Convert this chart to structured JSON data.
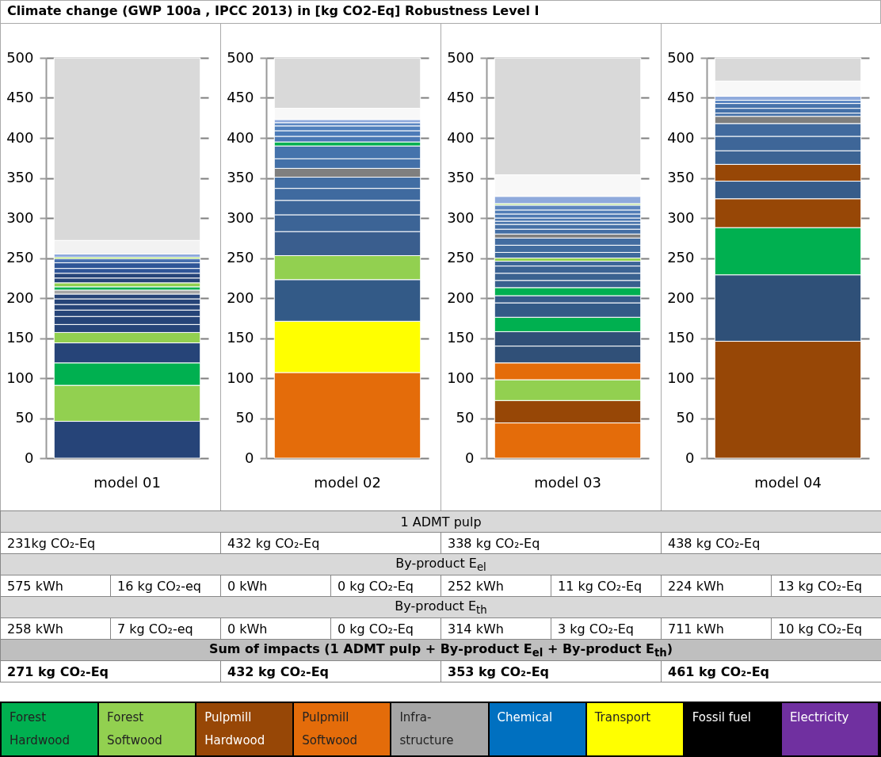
{
  "chart_data": [
    {
      "type": "bar",
      "title": "Climate change (GWP 100a , IPCC 2013) in [kg CO2-Eq] Robustness Level I",
      "categories": [
        "model 01"
      ],
      "stacked": true,
      "ylim": [
        0,
        500
      ],
      "yticks": [
        0,
        50,
        100,
        150,
        200,
        250,
        300,
        350,
        400,
        450,
        500
      ],
      "grid": "y",
      "series": [
        {
          "color": "#264478",
          "values": [
            46
          ]
        },
        {
          "color": "#92d050",
          "values": [
            45
          ]
        },
        {
          "color": "#00b050",
          "values": [
            28
          ]
        },
        {
          "color": "#264478",
          "values": [
            25
          ]
        },
        {
          "color": "#92d050",
          "values": [
            13
          ]
        },
        {
          "color": "#264478",
          "values": [
            10
          ]
        },
        {
          "color": "#264478",
          "values": [
            10
          ]
        },
        {
          "color": "#264478",
          "values": [
            8
          ]
        },
        {
          "color": "#264478",
          "values": [
            7
          ]
        },
        {
          "color": "#264478",
          "values": [
            7
          ]
        },
        {
          "color": "#264478",
          "values": [
            6
          ]
        },
        {
          "color": "#a6a6a6",
          "values": [
            5
          ]
        },
        {
          "color": "#00b050",
          "values": [
            4
          ]
        },
        {
          "color": "#92d050",
          "values": [
            5
          ]
        },
        {
          "color": "#264478",
          "values": [
            6
          ]
        },
        {
          "color": "#264478",
          "values": [
            6
          ]
        },
        {
          "color": "#2f5597",
          "values": [
            6
          ]
        },
        {
          "color": "#2f5597",
          "values": [
            7
          ]
        },
        {
          "color": "#4a72b0",
          "values": [
            5
          ]
        },
        {
          "color": "#92d050",
          "values": [
            2
          ]
        },
        {
          "color": "#8faadc",
          "values": [
            4
          ]
        },
        {
          "color": "#f2f2f2",
          "values": [
            17
          ]
        },
        {
          "color": "#d9d9d9",
          "values": [
            228
          ]
        }
      ],
      "annotations": [
        "231kg CO₂-Eq",
        "575 kWh",
        "16 kg CO₂-eq",
        "258 kWh",
        "7 kg CO₂-eq",
        "271  kg CO₂-Eq"
      ]
    },
    {
      "type": "bar",
      "categories": [
        "model 02"
      ],
      "stacked": true,
      "ylim": [
        0,
        500
      ],
      "yticks": [
        0,
        50,
        100,
        150,
        200,
        250,
        300,
        350,
        400,
        450,
        500
      ],
      "grid": "y",
      "series": [
        {
          "color": "#e46c0a",
          "values": [
            107
          ]
        },
        {
          "color": "#ffff00",
          "values": [
            64
          ]
        },
        {
          "color": "#335a87",
          "values": [
            52
          ]
        },
        {
          "color": "#92d050",
          "values": [
            30
          ]
        },
        {
          "color": "#3a5e8e",
          "values": [
            30
          ]
        },
        {
          "color": "#3c6496",
          "values": [
            21
          ]
        },
        {
          "color": "#3d6699",
          "values": [
            18
          ]
        },
        {
          "color": "#3f6a9f",
          "values": [
            15
          ]
        },
        {
          "color": "#416da3",
          "values": [
            14
          ]
        },
        {
          "color": "#7f7f7f",
          "values": [
            11
          ]
        },
        {
          "color": "#4370a8",
          "values": [
            12
          ]
        },
        {
          "color": "#4573ac",
          "values": [
            16
          ]
        },
        {
          "color": "#00b050",
          "values": [
            5
          ]
        },
        {
          "color": "#4a78b4",
          "values": [
            7
          ]
        },
        {
          "color": "#4c7bb8",
          "values": [
            7
          ]
        },
        {
          "color": "#4f7fbc",
          "values": [
            6
          ]
        },
        {
          "color": "#5b87c2",
          "values": [
            4
          ]
        },
        {
          "color": "#8faadc",
          "values": [
            4
          ]
        },
        {
          "color": "#f8f8f8",
          "values": [
            14
          ]
        },
        {
          "color": "#d9d9d9",
          "values": [
            63
          ]
        }
      ],
      "annotations": [
        "432 kg CO₂-Eq",
        "0 kWh",
        "0 kg CO₂-Eq",
        "0 kWh",
        "0 kg CO₂-Eq",
        "432 kg CO₂-Eq"
      ]
    },
    {
      "type": "bar",
      "categories": [
        "model 03"
      ],
      "stacked": true,
      "ylim": [
        0,
        500
      ],
      "yticks": [
        0,
        50,
        100,
        150,
        200,
        250,
        300,
        350,
        400,
        450,
        500
      ],
      "grid": "y",
      "series": [
        {
          "color": "#e46c0a",
          "values": [
            44
          ]
        },
        {
          "color": "#974706",
          "values": [
            28
          ]
        },
        {
          "color": "#92d050",
          "values": [
            26
          ]
        },
        {
          "color": "#e46c0a",
          "values": [
            21
          ]
        },
        {
          "color": "#305078",
          "values": [
            21
          ]
        },
        {
          "color": "#305078",
          "values": [
            18
          ]
        },
        {
          "color": "#00b050",
          "values": [
            18
          ]
        },
        {
          "color": "#335a87",
          "values": [
            18
          ]
        },
        {
          "color": "#365c8a",
          "values": [
            9
          ]
        },
        {
          "color": "#00b050",
          "values": [
            10
          ]
        },
        {
          "color": "#38608e",
          "values": [
            9
          ]
        },
        {
          "color": "#3a6290",
          "values": [
            9
          ]
        },
        {
          "color": "#3c6494",
          "values": [
            9
          ]
        },
        {
          "color": "#3e6698",
          "values": [
            6
          ]
        },
        {
          "color": "#92d050",
          "values": [
            4
          ]
        },
        {
          "color": "#3f699c",
          "values": [
            7
          ]
        },
        {
          "color": "#416b9e",
          "values": [
            9
          ]
        },
        {
          "color": "#426ca0",
          "values": [
            9
          ]
        },
        {
          "color": "#7f7f7f",
          "values": [
            5
          ]
        },
        {
          "color": "#436ea4",
          "values": [
            6
          ]
        },
        {
          "color": "#4570a6",
          "values": [
            6
          ]
        },
        {
          "color": "#4773ab",
          "values": [
            4
          ]
        },
        {
          "color": "#4a76ae",
          "values": [
            4
          ]
        },
        {
          "color": "#4d79b2",
          "values": [
            5
          ]
        },
        {
          "color": "#517db6",
          "values": [
            5
          ]
        },
        {
          "color": "#5d86bf",
          "values": [
            6
          ]
        },
        {
          "color": "#92d050",
          "values": [
            2
          ]
        },
        {
          "color": "#8faadc",
          "values": [
            9
          ]
        },
        {
          "color": "#f8f8f8",
          "values": [
            27
          ]
        },
        {
          "color": "#d9d9d9",
          "values": [
            146
          ]
        }
      ],
      "annotations": [
        "338 kg CO₂-Eq",
        "252 kWh",
        "11 kg CO₂-Eq",
        "314 kWh",
        "3 kg CO₂-Eq",
        "353 kg CO₂-Eq"
      ]
    },
    {
      "type": "bar",
      "categories": [
        "model 04"
      ],
      "stacked": true,
      "ylim": [
        0,
        500
      ],
      "yticks": [
        0,
        50,
        100,
        150,
        200,
        250,
        300,
        350,
        400,
        450,
        500
      ],
      "grid": "y",
      "series": [
        {
          "color": "#974706",
          "values": [
            146
          ]
        },
        {
          "color": "#2f5078",
          "values": [
            83
          ]
        },
        {
          "color": "#00b050",
          "values": [
            59
          ]
        },
        {
          "color": "#974706",
          "values": [
            36
          ]
        },
        {
          "color": "#365c8a",
          "values": [
            22
          ]
        },
        {
          "color": "#974706",
          "values": [
            21
          ]
        },
        {
          "color": "#3c6494",
          "values": [
            17
          ]
        },
        {
          "color": "#3e6698",
          "values": [
            18
          ]
        },
        {
          "color": "#416a9e",
          "values": [
            16
          ]
        },
        {
          "color": "#7f7f7f",
          "values": [
            9
          ]
        },
        {
          "color": "#4470a8",
          "values": [
            4
          ]
        },
        {
          "color": "#4470a8",
          "values": [
            6
          ]
        },
        {
          "color": "#4773ab",
          "values": [
            6
          ]
        },
        {
          "color": "#5b87c2",
          "values": [
            4
          ]
        },
        {
          "color": "#8faadc",
          "values": [
            5
          ]
        },
        {
          "color": "#f8f8f8",
          "values": [
            19
          ]
        },
        {
          "color": "#d9d9d9",
          "values": [
            29
          ]
        }
      ],
      "annotations": [
        "438 kg CO₂-Eq",
        "224 kWh",
        "13 kg CO₂-Eq",
        "711 kWh",
        "10 kg CO₂-Eq",
        "461 kg CO₂-Eq"
      ]
    },
    {
      "type": "other",
      "categories": [
        "Forest\nHardwood",
        "Forest\nSoftwood",
        "Pulpmill\nHardwood",
        "Pulpmill\nSoftwood",
        "Infra-\nstructure",
        "Chemical",
        "Transport",
        "Fossil fuel",
        "Electricity"
      ],
      "colors": [
        "#00b050",
        "#92d050",
        "#974706",
        "#e46c0a",
        "#a6a6a6",
        "#0070c0",
        "#ffff00",
        "#000000",
        "#7030a0"
      ],
      "annotations": [
        "1 ADMT pulp",
        "By-product E$_{el}$",
        "By-product E$_{th}$",
        "Sum of impacts (1 ADMT pulp + By-product E$_{el}$ + By-product E$_{th}$)"
      ]
    }
  ]
}
